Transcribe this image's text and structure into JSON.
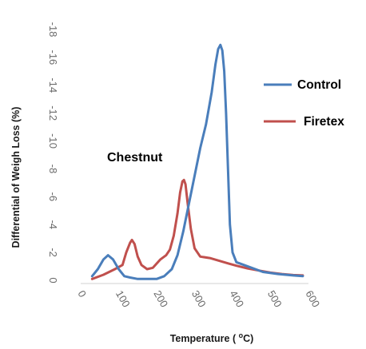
{
  "chart_data": {
    "type": "line",
    "title": "",
    "annotation": "Chestnut",
    "xlabel_parts": {
      "before": "Temperature ( ",
      "sup": "o",
      "after": "C)"
    },
    "ylabel": "Differential  of Weigh Loss  (%)",
    "xlim": [
      0,
      600
    ],
    "ylim": [
      0,
      -18
    ],
    "x_ticks": [
      0,
      100,
      200,
      300,
      400,
      500,
      600
    ],
    "y_ticks": [
      0,
      -2,
      -4,
      -6,
      -8,
      -10,
      -12,
      -14,
      -16,
      -18
    ],
    "y_tick_labels": [
      "0",
      "-2",
      "-4",
      "-6",
      "-8",
      "-10",
      "-12",
      "-14",
      "-16",
      "-18"
    ],
    "grid": false,
    "legend_position": "right",
    "series": [
      {
        "name": "Control",
        "color": "#4a7ebb",
        "points": [
          [
            30,
            -0.3
          ],
          [
            45,
            -0.8
          ],
          [
            60,
            -1.5
          ],
          [
            72,
            -1.8
          ],
          [
            85,
            -1.5
          ],
          [
            100,
            -0.8
          ],
          [
            115,
            -0.3
          ],
          [
            130,
            -0.2
          ],
          [
            150,
            -0.1
          ],
          [
            200,
            -0.1
          ],
          [
            220,
            -0.3
          ],
          [
            240,
            -0.8
          ],
          [
            255,
            -1.8
          ],
          [
            270,
            -3.5
          ],
          [
            285,
            -5.5
          ],
          [
            300,
            -7.5
          ],
          [
            315,
            -9.5
          ],
          [
            330,
            -11.2
          ],
          [
            345,
            -13.5
          ],
          [
            355,
            -15.5
          ],
          [
            362,
            -16.6
          ],
          [
            368,
            -16.9
          ],
          [
            373,
            -16.5
          ],
          [
            378,
            -15
          ],
          [
            383,
            -12
          ],
          [
            388,
            -8
          ],
          [
            393,
            -4
          ],
          [
            400,
            -2
          ],
          [
            410,
            -1.3
          ],
          [
            430,
            -1.1
          ],
          [
            450,
            -0.9
          ],
          [
            480,
            -0.6
          ],
          [
            520,
            -0.45
          ],
          [
            560,
            -0.35
          ],
          [
            585,
            -0.3
          ]
        ]
      },
      {
        "name": "Firetex",
        "color": "#c0504d",
        "points": [
          [
            30,
            -0.1
          ],
          [
            60,
            -0.4
          ],
          [
            90,
            -0.8
          ],
          [
            110,
            -1.1
          ],
          [
            120,
            -2
          ],
          [
            130,
            -2.7
          ],
          [
            135,
            -2.9
          ],
          [
            142,
            -2.6
          ],
          [
            150,
            -1.7
          ],
          [
            160,
            -1.1
          ],
          [
            175,
            -0.8
          ],
          [
            190,
            -0.9
          ],
          [
            210,
            -1.5
          ],
          [
            225,
            -1.8
          ],
          [
            235,
            -2.2
          ],
          [
            245,
            -3.2
          ],
          [
            255,
            -4.8
          ],
          [
            262,
            -6.3
          ],
          [
            268,
            -7.1
          ],
          [
            272,
            -7.2
          ],
          [
            276,
            -6.9
          ],
          [
            282,
            -5.5
          ],
          [
            290,
            -3.7
          ],
          [
            300,
            -2.3
          ],
          [
            315,
            -1.7
          ],
          [
            340,
            -1.6
          ],
          [
            365,
            -1.4
          ],
          [
            390,
            -1.2
          ],
          [
            410,
            -1.05
          ],
          [
            440,
            -0.85
          ],
          [
            470,
            -0.7
          ],
          [
            500,
            -0.55
          ],
          [
            530,
            -0.45
          ],
          [
            560,
            -0.38
          ],
          [
            585,
            -0.35
          ]
        ]
      }
    ]
  }
}
